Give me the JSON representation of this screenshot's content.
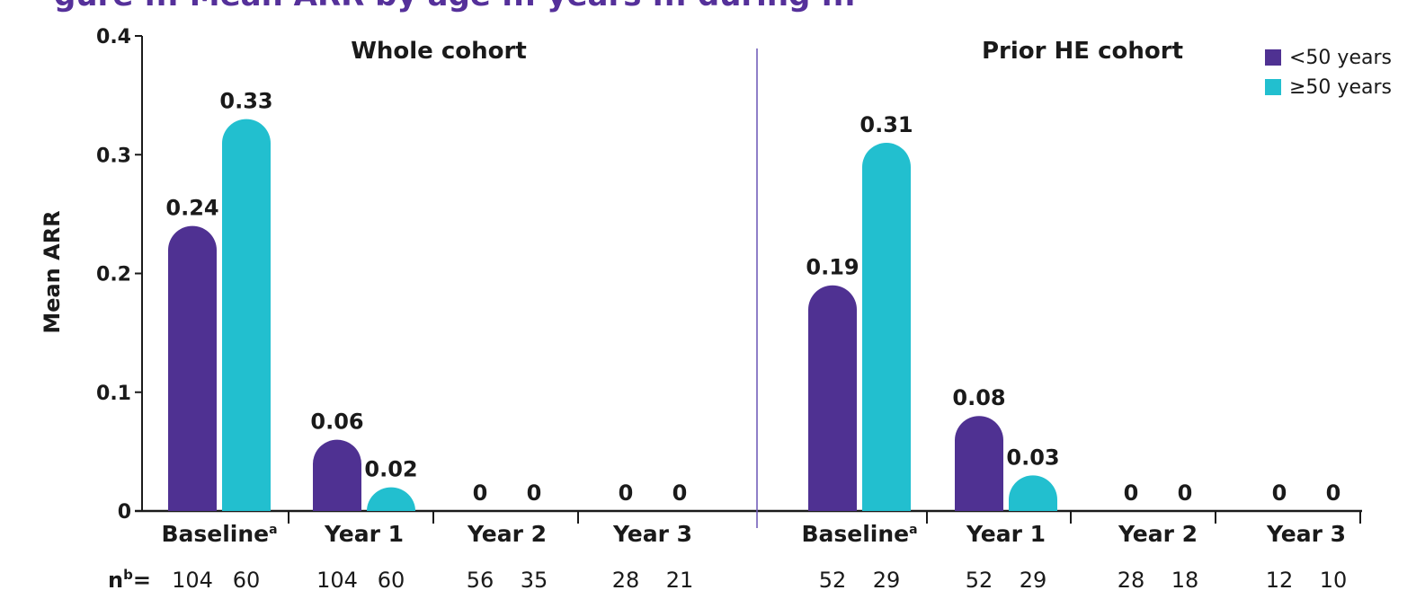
{
  "title": "gure ... Mean ARR by age ... years ... during ...",
  "chart_data": {
    "type": "bar",
    "ylabel": "Mean ARR",
    "ylim": [
      0,
      0.4
    ],
    "yticks": [
      "0",
      "0.1",
      "0.2",
      "0.3",
      "0.4"
    ],
    "ytick_values": [
      0,
      0.1,
      0.2,
      0.3,
      0.4
    ],
    "grid": false,
    "legend_position": "top-right",
    "legend": [
      {
        "name": "<50 years",
        "color": "#4f3192"
      },
      {
        "name": "≥50 years",
        "color": "#22bfcf"
      }
    ],
    "series_names": [
      "<50 years",
      "≥50 years"
    ],
    "n_prefix": "n",
    "n_super": "b",
    "n_suffix": "=",
    "panels": [
      {
        "title": "Whole cohort",
        "groups": [
          {
            "label": "Baseline",
            "sup": "a",
            "values": [
              0.24,
              0.33
            ],
            "labels": [
              "0.24",
              "0.33"
            ],
            "n": [
              "104",
              "60"
            ]
          },
          {
            "label": "Year 1",
            "sup": "",
            "values": [
              0.06,
              0.02
            ],
            "labels": [
              "0.06",
              "0.02"
            ],
            "n": [
              "104",
              "60"
            ]
          },
          {
            "label": "Year 2",
            "sup": "",
            "values": [
              0,
              0
            ],
            "labels": [
              "0",
              "0"
            ],
            "n": [
              "56",
              "35"
            ]
          },
          {
            "label": "Year 3",
            "sup": "",
            "values": [
              0,
              0
            ],
            "labels": [
              "0",
              "0"
            ],
            "n": [
              "28",
              "21"
            ]
          }
        ]
      },
      {
        "title": "Prior HE cohort",
        "groups": [
          {
            "label": "Baseline",
            "sup": "a",
            "values": [
              0.19,
              0.31
            ],
            "labels": [
              "0.19",
              "0.31"
            ],
            "n": [
              "52",
              "29"
            ]
          },
          {
            "label": "Year 1",
            "sup": "",
            "values": [
              0.08,
              0.03
            ],
            "labels": [
              "0.08",
              "0.03"
            ],
            "n": [
              "52",
              "29"
            ]
          },
          {
            "label": "Year 2",
            "sup": "",
            "values": [
              0,
              0
            ],
            "labels": [
              "0",
              "0"
            ],
            "n": [
              "28",
              "18"
            ]
          },
          {
            "label": "Year 3",
            "sup": "",
            "values": [
              0,
              0
            ],
            "labels": [
              "0",
              "0"
            ],
            "n": [
              "12",
              "10"
            ]
          }
        ]
      }
    ]
  }
}
